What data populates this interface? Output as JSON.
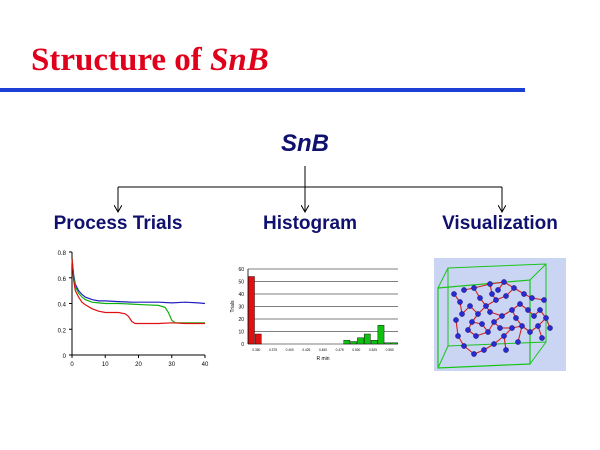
{
  "slide": {
    "title_prefix": "Structure of ",
    "title_emph": "SnB",
    "root": "SnB",
    "branches": [
      {
        "label": "Process Trials"
      },
      {
        "label": "Histogram"
      },
      {
        "label": "Visualization"
      }
    ],
    "accent_color": "#e0001b",
    "rule_color": "#1d3fd6",
    "text_color": "#10106e"
  },
  "chart_data": [
    {
      "type": "line",
      "title": "",
      "xlabel": "",
      "ylabel": "",
      "xlim": [
        0,
        40
      ],
      "ylim": [
        0,
        0.8
      ],
      "x_ticks": [
        "0",
        "10",
        "20",
        "30",
        "40"
      ],
      "y_ticks": [
        "0",
        "0.2",
        "0.4",
        "0.6",
        "0.8"
      ],
      "series": [
        {
          "color": "#2020c0",
          "x": [
            0,
            0.5,
            1,
            2,
            3,
            4,
            6,
            8,
            10,
            14,
            18,
            22,
            26,
            30,
            34,
            38,
            40
          ],
          "y": [
            0.75,
            0.62,
            0.55,
            0.5,
            0.47,
            0.45,
            0.43,
            0.42,
            0.42,
            0.415,
            0.41,
            0.41,
            0.41,
            0.405,
            0.41,
            0.405,
            0.4
          ]
        },
        {
          "color": "#10b010",
          "x": [
            0,
            0.5,
            1,
            2,
            3,
            4,
            6,
            8,
            10,
            14,
            18,
            22,
            26,
            28,
            29,
            30,
            31,
            32,
            34,
            36,
            40
          ],
          "y": [
            0.75,
            0.6,
            0.53,
            0.48,
            0.45,
            0.43,
            0.41,
            0.405,
            0.4,
            0.4,
            0.395,
            0.39,
            0.385,
            0.37,
            0.33,
            0.27,
            0.25,
            0.25,
            0.25,
            0.25,
            0.25
          ]
        },
        {
          "color": "#e01010",
          "x": [
            0,
            0.5,
            1,
            2,
            3,
            4,
            6,
            8,
            10,
            14,
            16,
            17,
            18,
            19,
            22,
            26,
            30,
            34,
            38,
            40
          ],
          "y": [
            0.75,
            0.58,
            0.5,
            0.45,
            0.41,
            0.39,
            0.36,
            0.34,
            0.33,
            0.33,
            0.32,
            0.3,
            0.26,
            0.245,
            0.245,
            0.245,
            0.25,
            0.245,
            0.245,
            0.245
          ]
        }
      ]
    },
    {
      "type": "bar",
      "title": "",
      "xlabel": "R min",
      "ylabel": "Trials",
      "ylim": [
        0,
        60
      ],
      "y_ticks": [
        "0",
        "10",
        "20",
        "30",
        "40",
        "50",
        "60"
      ],
      "categories": [
        "0.35",
        "0.36",
        "0.37",
        "0.38",
        "0.39",
        "0.40",
        "0.41",
        "0.42",
        "0.43",
        "0.44",
        "0.45",
        "0.46",
        "0.47",
        "0.48",
        "0.49",
        "0.50",
        "0.51",
        "0.52",
        "0.53",
        "0.54",
        "0.55",
        "0.56"
      ],
      "tick_labels": [
        "0.350",
        "0.375",
        "0.400",
        "0.425",
        "0.450",
        "0.475",
        "0.500",
        "0.525",
        "0.550"
      ],
      "values": [
        54,
        8,
        0,
        0,
        0,
        0,
        0,
        0,
        0,
        0,
        0,
        0,
        0,
        0,
        3,
        2,
        5,
        8,
        3,
        15,
        1,
        1
      ],
      "colors": [
        "#e01010",
        "#e01010",
        "#e01010",
        "#e01010",
        "#e01010",
        "#e01010",
        "#e01010",
        "#e01010",
        "#e01010",
        "#e01010",
        "#e01010",
        "#10c010",
        "#10c010",
        "#10c010",
        "#10c010",
        "#10c010",
        "#10c010",
        "#10c010",
        "#10c010",
        "#10c010",
        "#10c010",
        "#10c010"
      ]
    }
  ],
  "visualization": {
    "box_color": "#19c419",
    "atom_color": "#2a2ad0",
    "bond_color": "#d02020",
    "background": "#c9d5f3"
  }
}
